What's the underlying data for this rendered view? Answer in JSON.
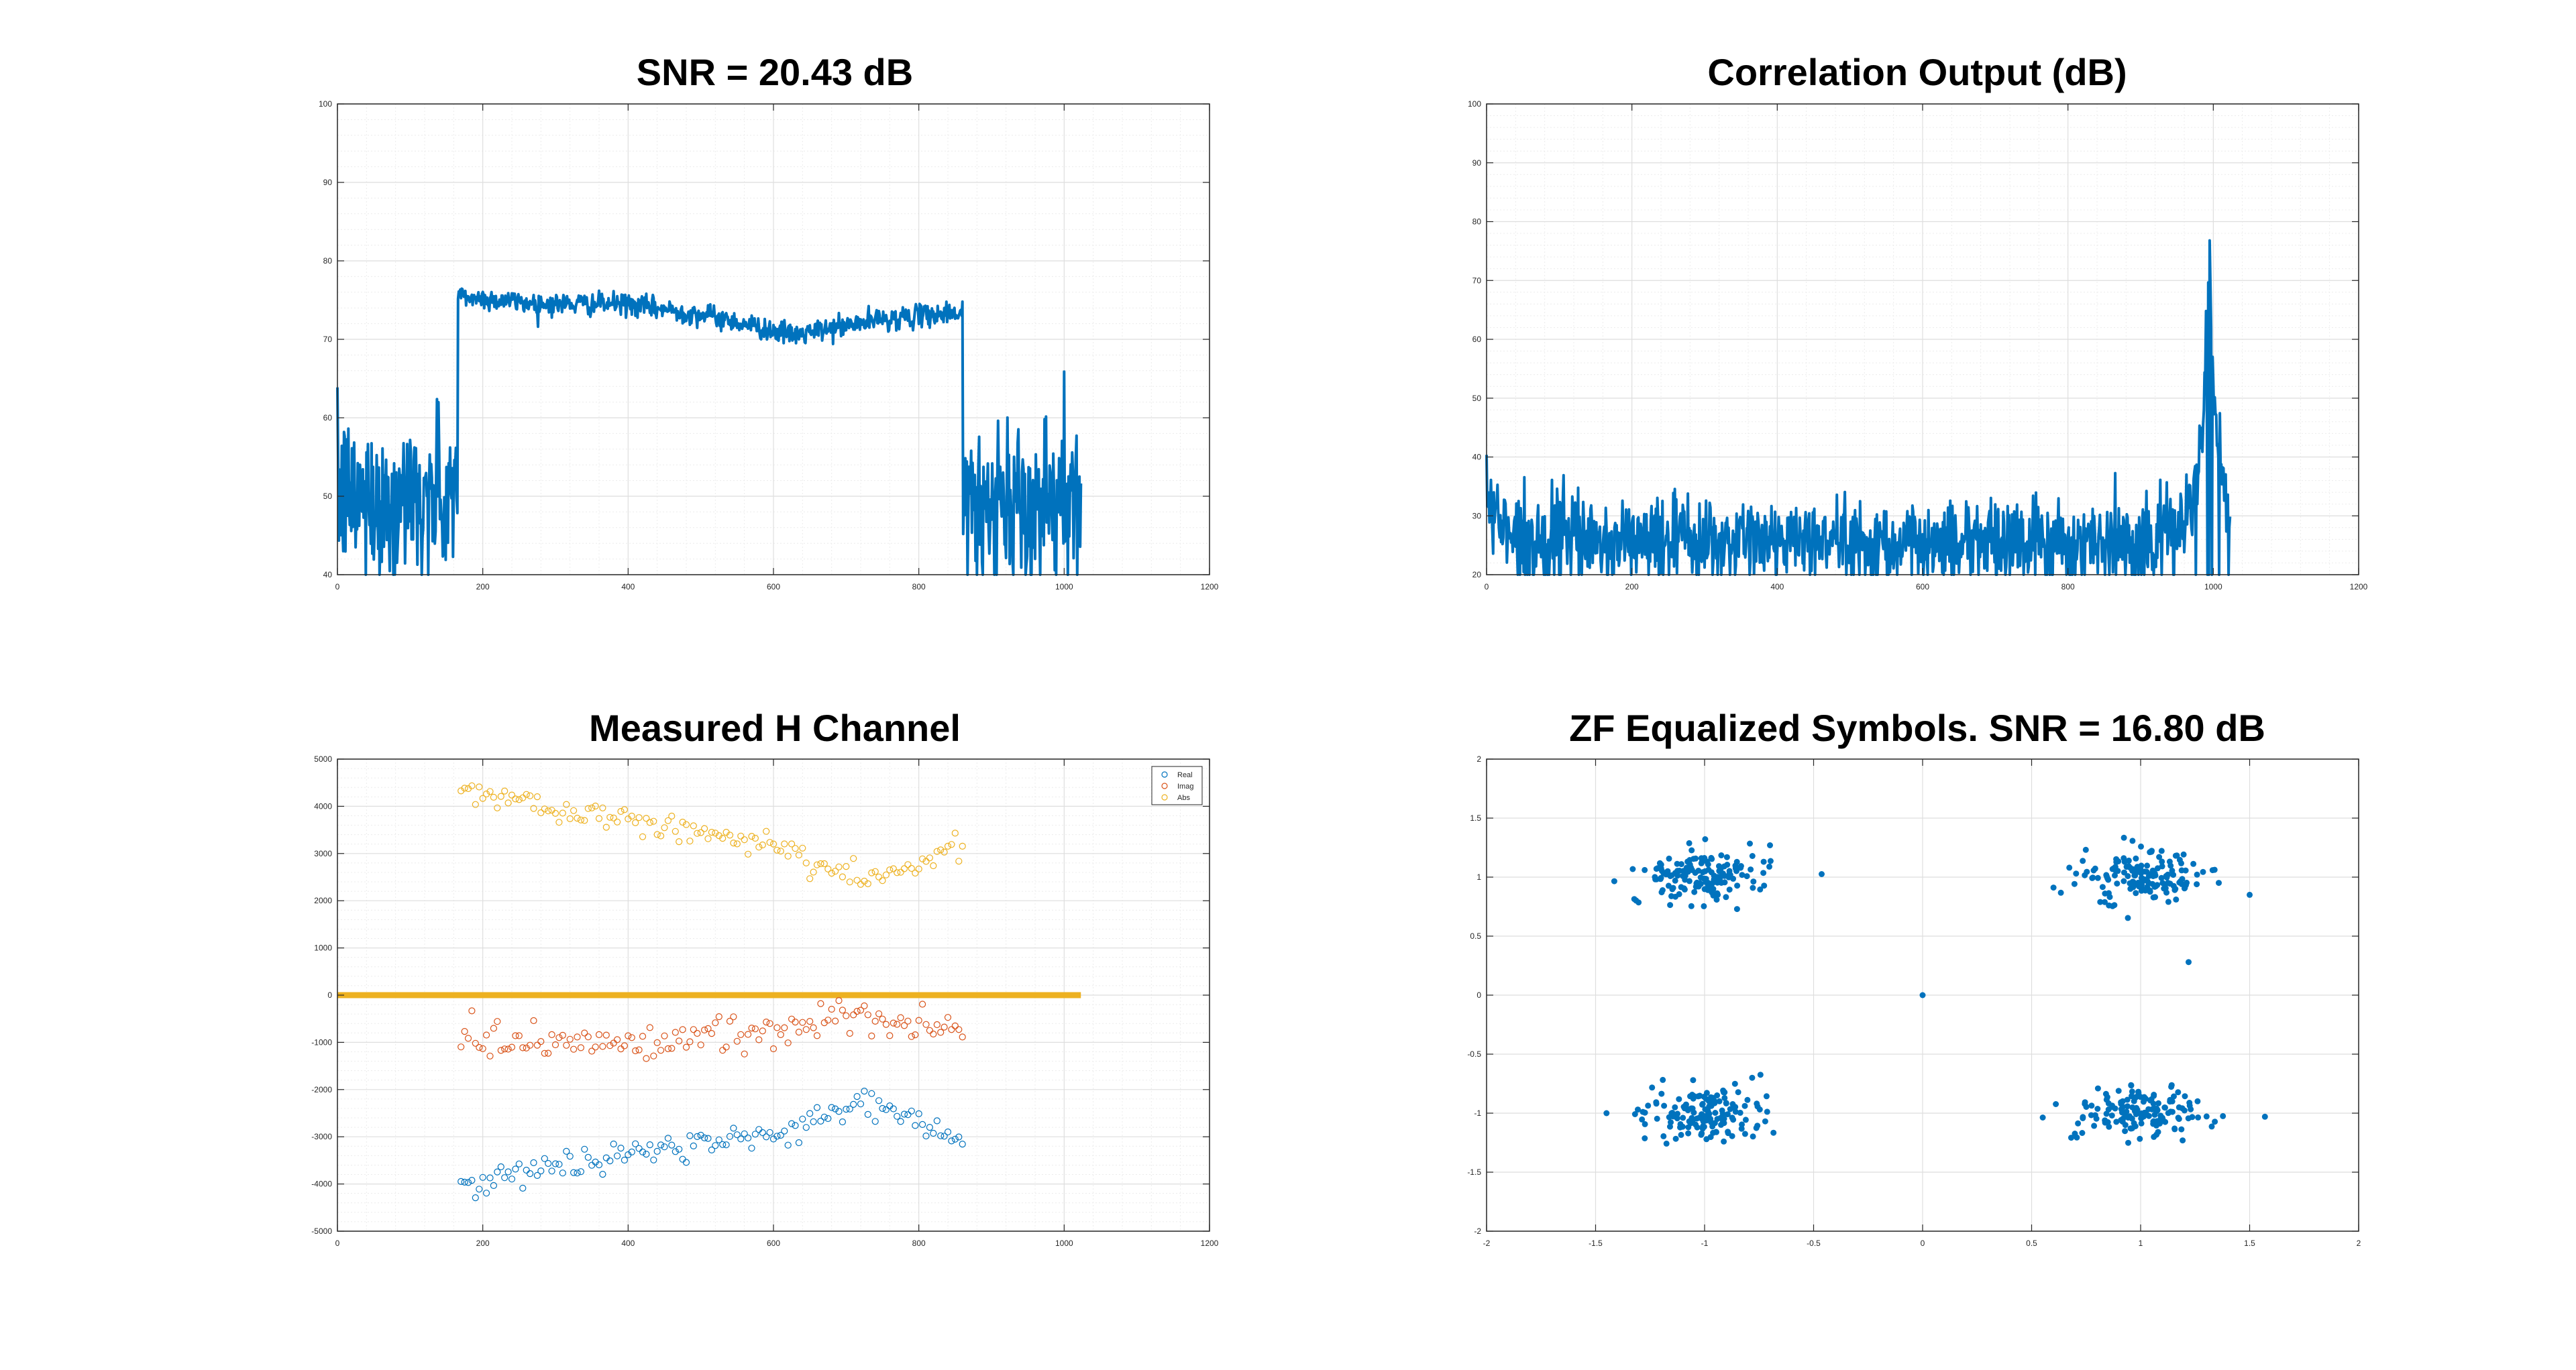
{
  "chart_data": [
    {
      "type": "line",
      "title": "SNR = 20.43 dB",
      "xlabel": "",
      "ylabel": "",
      "xlim": [
        0,
        1200
      ],
      "ylim": [
        40,
        100
      ],
      "xticks": [
        0,
        200,
        400,
        600,
        800,
        1000,
        1200
      ],
      "yticks": [
        40,
        50,
        60,
        70,
        80,
        90,
        100
      ],
      "grid": "major+minor",
      "color": "#0072BD",
      "series": [
        {
          "x_range": [
            0,
            1023
          ],
          "segments": [
            {
              "x": [
                0,
                165
              ],
              "level": 50,
              "noise": 5,
              "mode": "noise"
            },
            {
              "x": [
                165,
                860
              ],
              "level": [
                75.5,
                74.5,
                74.5,
                73,
                70.5,
                72.5,
                73.5
              ],
              "noise": 0.7,
              "mode": "band"
            },
            {
              "x": [
                860,
                1023
              ],
              "level": 50,
              "noise": 5,
              "mode": "noise"
            }
          ]
        }
      ]
    },
    {
      "type": "line",
      "title": "Correlation Output (dB)",
      "xlabel": "",
      "ylabel": "",
      "xlim": [
        0,
        1200
      ],
      "ylim": [
        20,
        100
      ],
      "xticks": [
        0,
        200,
        400,
        600,
        800,
        1000,
        1200
      ],
      "yticks": [
        20,
        30,
        40,
        50,
        60,
        70,
        80,
        90,
        100
      ],
      "grid": "major+minor",
      "color": "#0072BD",
      "series": [
        {
          "x_range": [
            0,
            1023
          ],
          "floor": 26,
          "noise": 3.5,
          "peak": {
            "x": 995,
            "value": 73
          }
        }
      ]
    },
    {
      "type": "scatter",
      "title": "Measured H Channel",
      "xlabel": "",
      "ylabel": "",
      "xlim": [
        0,
        1200
      ],
      "ylim": [
        -5000,
        5000
      ],
      "xticks": [
        0,
        200,
        400,
        600,
        800,
        1000,
        1200
      ],
      "yticks": [
        -5000,
        -4000,
        -3000,
        -2000,
        -1000,
        0,
        1000,
        2000,
        3000,
        4000,
        5000
      ],
      "grid": "major+minor",
      "legend": "top-right",
      "series": [
        {
          "name": "Real",
          "color": "#0072BD",
          "x_range": [
            165,
            860
          ],
          "trend": [
            [
              165,
              -4100
            ],
            [
              400,
              -3300
            ],
            [
              600,
              -3000
            ],
            [
              730,
              -2250
            ],
            [
              860,
              -3100
            ]
          ],
          "spread": 200
        },
        {
          "name": "Imag",
          "color": "#D95319",
          "x_range": [
            165,
            860
          ],
          "trend": [
            [
              165,
              -1000
            ],
            [
              400,
              -1000
            ],
            [
              600,
              -800
            ],
            [
              700,
              -400
            ],
            [
              860,
              -800
            ]
          ],
          "spread": 250
        },
        {
          "name": "Abs",
          "color": "#EDB120",
          "x_range": [
            165,
            860
          ],
          "trend": [
            [
              165,
              4300
            ],
            [
              400,
              3700
            ],
            [
              600,
              3200
            ],
            [
              730,
              2400
            ],
            [
              860,
              3200
            ]
          ],
          "spread": 200
        }
      ],
      "zero_line": {
        "x_range": [
          0,
          1023
        ],
        "value": 0,
        "color": "#EDB120"
      }
    },
    {
      "type": "scatter",
      "title": "ZF Equalized Symbols. SNR = 16.80 dB",
      "xlabel": "",
      "ylabel": "",
      "xlim": [
        -2,
        2
      ],
      "ylim": [
        -2,
        2
      ],
      "xticks": [
        -2,
        -1.5,
        -1,
        -0.5,
        0,
        0.5,
        1,
        1.5,
        2
      ],
      "yticks": [
        -2,
        -1.5,
        -1,
        -0.5,
        0,
        0.5,
        1,
        1.5,
        2
      ],
      "grid": "major",
      "color": "#0072BD",
      "series": [
        {
          "clusters": [
            [
              -1,
              1
            ],
            [
              1,
              1
            ],
            [
              -1,
              -1
            ],
            [
              1,
              -1
            ]
          ],
          "points_per_cluster": 150,
          "spread": 0.13,
          "extra_points": [
            [
              0,
              0
            ],
            [
              -1.45,
              -1
            ],
            [
              1.57,
              -1.03
            ],
            [
              1.5,
              0.85
            ],
            [
              1.22,
              0.28
            ],
            [
              -0.7,
              1.27
            ]
          ]
        }
      ]
    }
  ]
}
